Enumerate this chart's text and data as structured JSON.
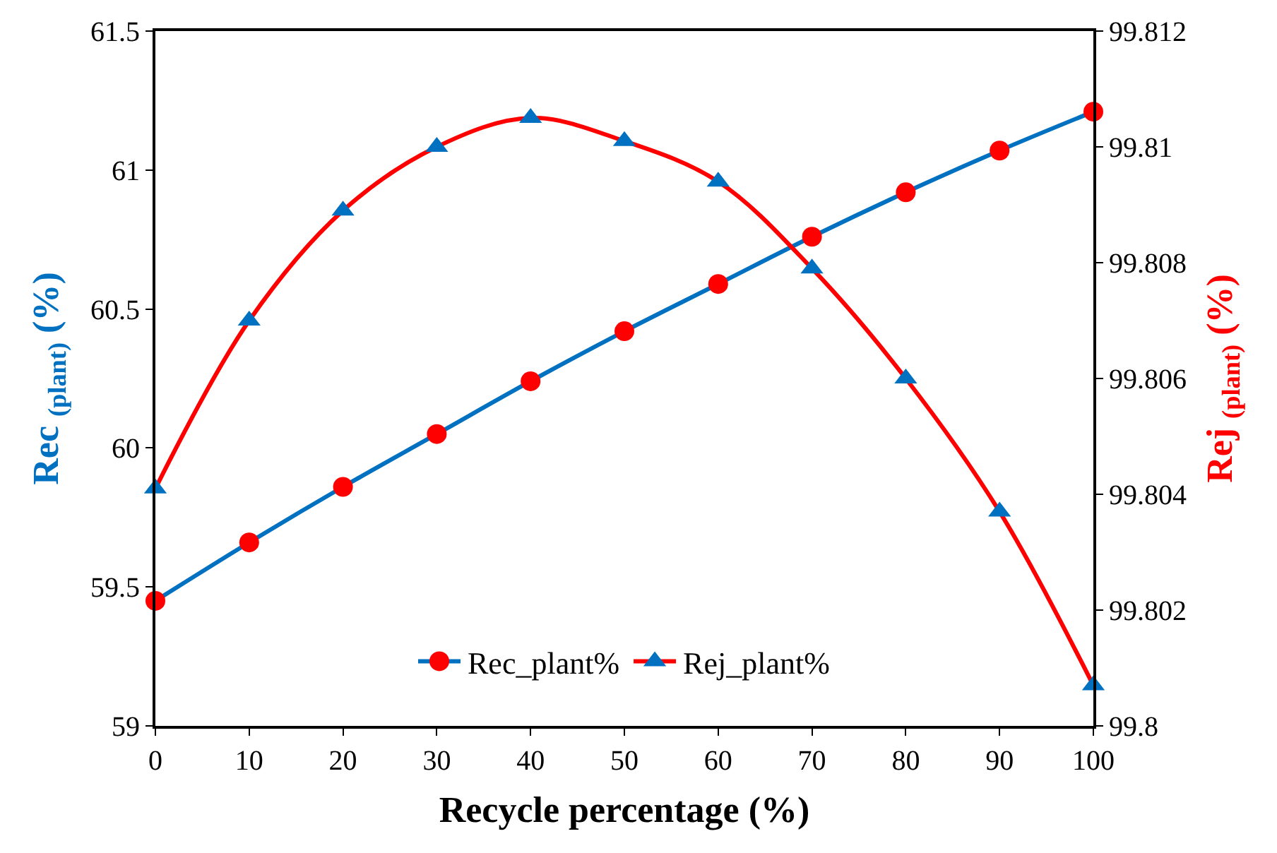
{
  "chart_data": {
    "type": "line",
    "xlabel": "Recycle percentage (%)",
    "ylabel": "Rec $_{(plant)}$ (%)",
    "y2label": "Rej $_{(plant)}$ (%)",
    "x": [
      0,
      10,
      20,
      30,
      40,
      50,
      60,
      70,
      80,
      90,
      100
    ],
    "xlim": [
      0,
      100
    ],
    "xticks": [
      0,
      10,
      20,
      30,
      40,
      50,
      60,
      70,
      80,
      90,
      100
    ],
    "ylim": [
      59,
      61.5
    ],
    "yticks": [
      59,
      59.5,
      60,
      60.5,
      61,
      61.5
    ],
    "y2lim": [
      99.8,
      99.812
    ],
    "y2ticks": [
      99.8,
      99.802,
      99.804,
      99.806,
      99.808,
      99.81,
      99.812
    ],
    "legend": "bottom",
    "line_style": "solid",
    "series": [
      {
        "name": "Rec_plant%",
        "color": "#0070c0",
        "marker": "circle",
        "colors": [
          "#ff0000",
          "#ff0000",
          "#ff0000",
          "#ff0000",
          "#ff0000",
          "#ff0000",
          "#ff0000",
          "#ff0000",
          "#ff0000",
          "#ff0000",
          "#ff0000"
        ],
        "values": [
          59.45,
          59.66,
          59.86,
          60.05,
          60.24,
          60.42,
          60.59,
          60.76,
          60.92,
          61.07,
          61.21
        ]
      },
      {
        "name": "Rej_plant%",
        "color": "#ff0000",
        "marker": "triangle",
        "axis": "y2",
        "colors": [
          "#0070c0",
          "#0070c0",
          "#0070c0",
          "#0070c0",
          "#0070c0",
          "#0070c0",
          "#0070c0",
          "#0070c0",
          "#0070c0",
          "#0070c0",
          "#0070c0"
        ],
        "values": [
          99.8041,
          99.807,
          99.8089,
          99.81,
          99.8105,
          99.8101,
          99.8094,
          99.8079,
          99.806,
          99.8037,
          99.8007
        ]
      }
    ]
  }
}
